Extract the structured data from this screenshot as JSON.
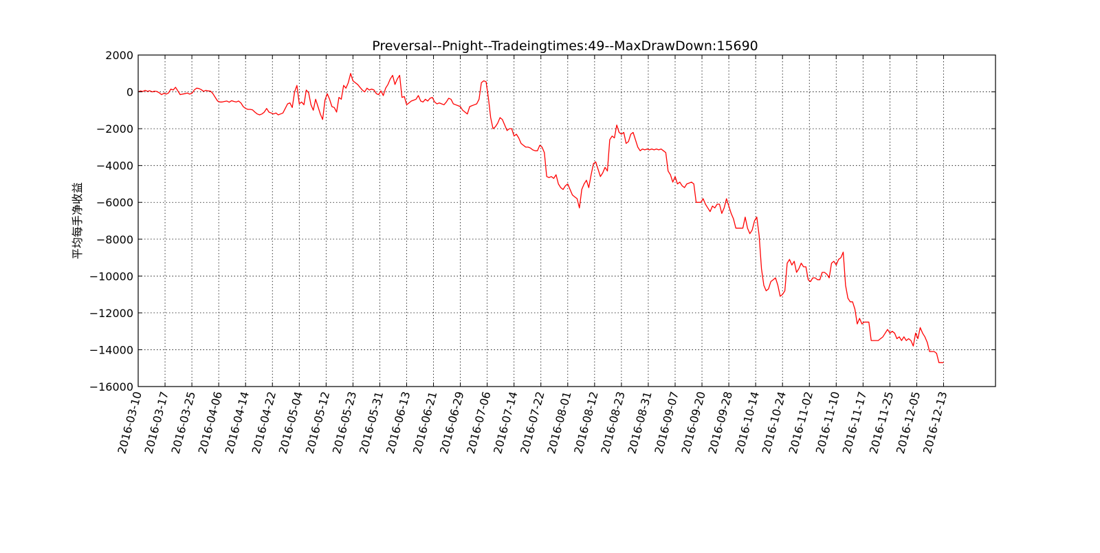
{
  "chart_data": {
    "type": "line",
    "title": "Preversal--Pnight--Tradeingtimes:49--MaxDrawDown:15690",
    "xlabel": "",
    "ylabel": "平均每手净收益",
    "ylim": [
      -16000,
      2000
    ],
    "yticks": [
      2000,
      0,
      -2000,
      -4000,
      -6000,
      -8000,
      -10000,
      -12000,
      -14000,
      -16000
    ],
    "xtick_labels": [
      "2016-03-10",
      "2016-03-17",
      "2016-03-25",
      "2016-04-06",
      "2016-04-14",
      "2016-04-22",
      "2016-05-04",
      "2016-05-12",
      "2016-05-23",
      "2016-05-31",
      "2016-06-13",
      "2016-06-21",
      "2016-06-29",
      "2016-07-06",
      "2016-07-14",
      "2016-07-22",
      "2016-08-01",
      "2016-08-12",
      "2016-08-23",
      "2016-08-31",
      "2016-09-07",
      "2016-09-20",
      "2016-09-28",
      "2016-10-14",
      "2016-10-24",
      "2016-11-02",
      "2016-11-10",
      "2016-11-17",
      "2016-11-25",
      "2016-12-05",
      "2016-12-13"
    ],
    "grid": true,
    "legend": "none",
    "series": [
      {
        "color": "#ff0000",
        "values": [
          0,
          50,
          20,
          80,
          30,
          60,
          0,
          40,
          20,
          -50,
          -150,
          -80,
          -120,
          -60,
          150,
          100,
          250,
          50,
          -150,
          -120,
          -100,
          -60,
          -120,
          -80,
          100,
          200,
          180,
          120,
          30,
          80,
          50,
          40,
          -100,
          -300,
          -500,
          -550,
          -550,
          -520,
          -500,
          -560,
          -480,
          -520,
          -550,
          -500,
          -600,
          -800,
          -900,
          -950,
          -950,
          -980,
          -1100,
          -1200,
          -1250,
          -1200,
          -1100,
          -900,
          -1100,
          -1150,
          -1200,
          -1150,
          -1250,
          -1200,
          -1150,
          -900,
          -650,
          -600,
          -850,
          0,
          350,
          -650,
          -550,
          -700,
          100,
          -50,
          -700,
          -1000,
          -400,
          -800,
          -1200,
          -1500,
          -450,
          -100,
          -400,
          -800,
          -850,
          -1100,
          -300,
          -400,
          350,
          200,
          500,
          1000,
          600,
          500,
          400,
          250,
          100,
          0,
          200,
          100,
          150,
          100,
          -100,
          -150,
          50,
          -200,
          200,
          400,
          700,
          900,
          400,
          700,
          900,
          -300,
          -250,
          -700,
          -600,
          -500,
          -450,
          -400,
          -200,
          -500,
          -550,
          -400,
          -500,
          -350,
          -300,
          -550,
          -650,
          -600,
          -650,
          -700,
          -550,
          -350,
          -400,
          -650,
          -700,
          -750,
          -800,
          -1000,
          -1100,
          -1200,
          -800,
          -750,
          -700,
          -650,
          -400,
          500,
          600,
          550,
          -300,
          -1400,
          -2000,
          -1900,
          -1700,
          -1400,
          -1500,
          -1800,
          -2100,
          -2000,
          -2000,
          -2400,
          -2300,
          -2500,
          -2800,
          -2900,
          -3000,
          -3000,
          -3050,
          -3150,
          -3200,
          -3200,
          -2900,
          -3000,
          -3300,
          -4600,
          -4650,
          -4600,
          -4700,
          -4500,
          -5000,
          -5200,
          -5300,
          -5100,
          -5000,
          -5300,
          -5600,
          -5700,
          -5800,
          -6300,
          -5300,
          -5000,
          -4800,
          -5200,
          -4500,
          -3900,
          -3800,
          -4200,
          -4600,
          -4400,
          -4100,
          -4300,
          -2600,
          -2400,
          -2500,
          -1800,
          -2200,
          -2300,
          -2200,
          -2800,
          -2700,
          -2300,
          -2200,
          -2600,
          -3000,
          -3200,
          -3100,
          -3150,
          -3100,
          -3150,
          -3100,
          -3150,
          -3100,
          -3150,
          -3100,
          -3200,
          -3300,
          -4300,
          -4500,
          -4900,
          -4600,
          -5000,
          -4900,
          -5100,
          -5200,
          -5000,
          -4950,
          -4900,
          -5000,
          -6000,
          -6000,
          -6000,
          -5800,
          -6100,
          -6300,
          -6500,
          -6200,
          -6300,
          -6100,
          -6100,
          -6600,
          -6300,
          -5800,
          -6200,
          -6600,
          -6900,
          -7400,
          -7400,
          -7400,
          -7400,
          -6800,
          -7400,
          -7700,
          -7500,
          -7000,
          -6800,
          -7800,
          -9600,
          -10500,
          -10800,
          -10700,
          -10300,
          -10200,
          -10100,
          -10500,
          -11100,
          -11000,
          -10800,
          -9300,
          -9100,
          -9400,
          -9200,
          -9800,
          -9600,
          -9300,
          -9500,
          -9500,
          -10200,
          -10300,
          -10100,
          -10100,
          -10200,
          -10200,
          -9800,
          -9800,
          -9900,
          -10100,
          -9300,
          -9200,
          -9400,
          -9100,
          -9000,
          -8700,
          -10500,
          -11200,
          -11400,
          -11400,
          -11800,
          -12600,
          -12300,
          -12600,
          -12500,
          -12500,
          -12500,
          -13500,
          -13500,
          -13500,
          -13500,
          -13400,
          -13300,
          -13100,
          -12900,
          -13100,
          -13000,
          -13100,
          -13400,
          -13300,
          -13500,
          -13300,
          -13500,
          -13400,
          -13500,
          -13800,
          -13100,
          -13400,
          -12800,
          -13100,
          -13300,
          -13600,
          -14100,
          -14100,
          -14100,
          -14200,
          -14700,
          -14700,
          -14700
        ]
      }
    ]
  }
}
